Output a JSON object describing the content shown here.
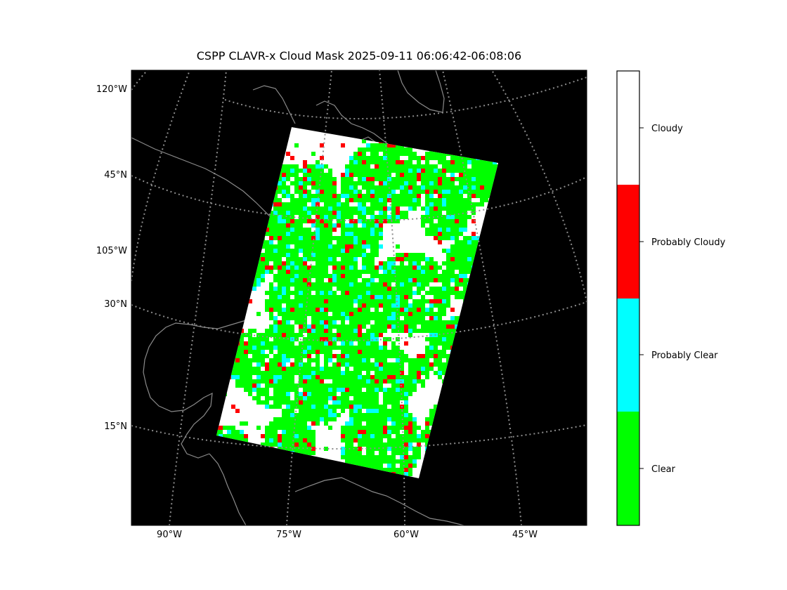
{
  "title": "CSPP CLAVR-x Cloud Mask 2025-09-11 06:06:42-06:08:06",
  "map": {
    "background_color": "#000000",
    "gridline_color": "#808080",
    "coastline_color": "#808080",
    "left_labels": [
      "120°W",
      "45°N",
      "105°W",
      "30°N",
      "15°N"
    ],
    "bottom_labels": [
      "90°W",
      "75°W",
      "60°W",
      "45°W"
    ]
  },
  "legend": {
    "categories": [
      {
        "label": "Cloudy",
        "color": "#ffffff"
      },
      {
        "label": "Probably Cloudy",
        "color": "#ff0000"
      },
      {
        "label": "Probably Clear",
        "color": "#00ffff"
      },
      {
        "label": "Clear",
        "color": "#00ff00"
      }
    ]
  }
}
